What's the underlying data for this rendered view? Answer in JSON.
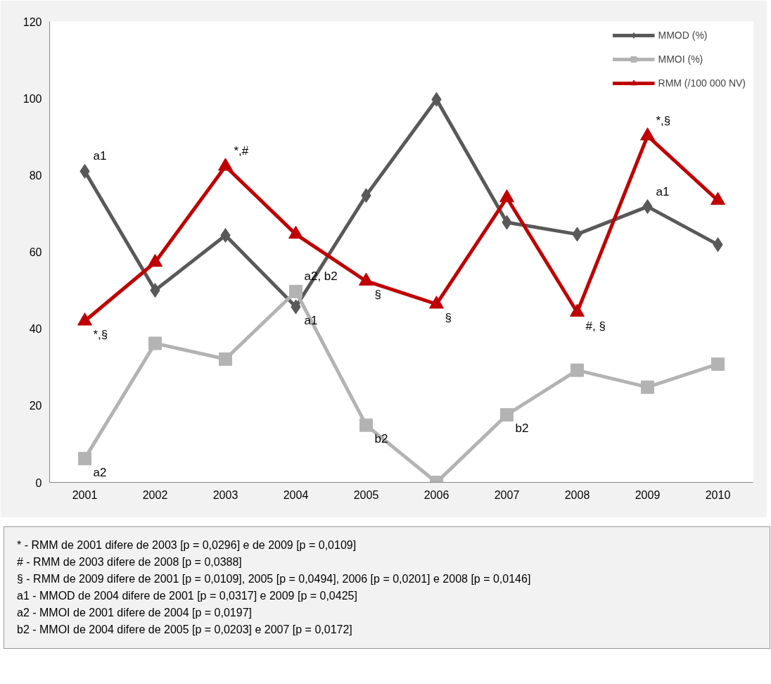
{
  "chart_data": {
    "type": "line",
    "categories": [
      "2001",
      "2002",
      "2003",
      "2004",
      "2005",
      "2006",
      "2007",
      "2008",
      "2009",
      "2010"
    ],
    "series": [
      {
        "name": "MMOD (%)",
        "color": "#595959",
        "marker": "diamond",
        "values": [
          81,
          50,
          64.3,
          45.7,
          74.7,
          99.7,
          67.7,
          64.6,
          71.8,
          61.9
        ]
      },
      {
        "name": "MMOI (%)",
        "color": "#b3b3b3",
        "marker": "square",
        "values": [
          6.2,
          36.2,
          32.1,
          49.7,
          14.9,
          0,
          17.6,
          29.2,
          24.8,
          30.8
        ]
      },
      {
        "name": "RMM (/100 000 NV)",
        "color": "#c00000",
        "marker": "triangle",
        "values": [
          42,
          57.3,
          82.3,
          64.6,
          52.4,
          46.4,
          74.1,
          44.3,
          90.2,
          73.4
        ]
      }
    ],
    "ylim": [
      0,
      120
    ],
    "yticks": [
      0,
      20,
      40,
      60,
      80,
      100,
      120
    ],
    "grid": false,
    "legend": "top right",
    "line_style": "solid",
    "annotations": [
      {
        "text": "a1",
        "x": "2001",
        "y": 81
      },
      {
        "text": "*,§",
        "x": "2001",
        "y": 42
      },
      {
        "text": "a2",
        "x": "2001",
        "y": 6.2
      },
      {
        "text": "*,#",
        "x": "2003",
        "y": 82.3
      },
      {
        "text": "a2, b2",
        "x": "2004",
        "y": 49.7
      },
      {
        "text": "a1",
        "x": "2004",
        "y": 45.7
      },
      {
        "text": "§",
        "x": "2005",
        "y": 52.4
      },
      {
        "text": "b2",
        "x": "2005",
        "y": 14.9
      },
      {
        "text": "§",
        "x": "2006",
        "y": 46.4
      },
      {
        "text": "b2",
        "x": "2007",
        "y": 17.6
      },
      {
        "text": "#, §",
        "x": "2008",
        "y": 44.3
      },
      {
        "text": "*,§",
        "x": "2009",
        "y": 90.2
      },
      {
        "text": "a1",
        "x": "2009",
        "y": 71.8
      },
      "* - RMM de 2001 difere de 2003 [p = 0,0296] e de 2009 [p = 0,0109]",
      "# - RMM de 2003 difere de 2008 [p = 0,0388]",
      "§ - RMM de 2009 difere de 2001 [p = 0,0109], 2005 [p = 0,0494], 2006 [p = 0,0201] e 2008 [p = 0,0146]",
      "a1 - MMOD de 2004 difere de 2001 [p = 0,0317] e 2009 [p = 0,0425]",
      "a2 - MMOI de 2001 difere de 2004 [p = 0,0197]",
      "b2 - MMOI de 2004 difere de 2005 [p = 0,0203] e 2007 [p = 0,0172]"
    ]
  }
}
